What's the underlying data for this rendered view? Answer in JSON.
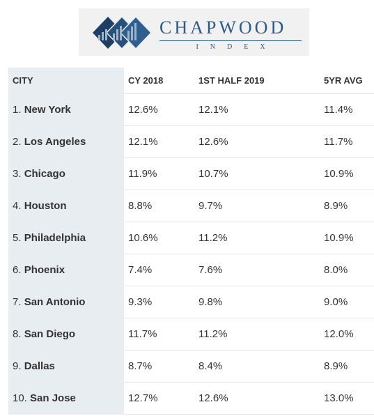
{
  "logo": {
    "wordmark": "CHAPWOOD",
    "subtitle": "INDEX",
    "colors": {
      "mark_dark": "#1f3f62",
      "mark_mid": "#2f5f8f",
      "text": "#2b5a86",
      "background": "#f1f1f1"
    }
  },
  "table": {
    "headers": {
      "city": "CITY",
      "cy2018": "CY 2018",
      "half2019": "1ST HALF 2019",
      "avg5yr": "5YR AVG"
    },
    "rows": [
      {
        "rank": "1.",
        "city": "New York",
        "cy2018": "12.6%",
        "half2019": "12.1%",
        "avg5yr": "11.4%"
      },
      {
        "rank": "2.",
        "city": "Los Angeles",
        "cy2018": "12.1%",
        "half2019": "12.6%",
        "avg5yr": "11.7%"
      },
      {
        "rank": "3.",
        "city": "Chicago",
        "cy2018": "11.9%",
        "half2019": "10.7%",
        "avg5yr": "10.9%"
      },
      {
        "rank": "4.",
        "city": "Houston",
        "cy2018": "8.8%",
        "half2019": "9.7%",
        "avg5yr": "8.9%"
      },
      {
        "rank": "5.",
        "city": "Philadelphia",
        "cy2018": "10.6%",
        "half2019": "11.2%",
        "avg5yr": "10.9%"
      },
      {
        "rank": "6.",
        "city": "Phoenix",
        "cy2018": "7.4%",
        "half2019": "7.6%",
        "avg5yr": "8.0%"
      },
      {
        "rank": "7.",
        "city": "San Antonio",
        "cy2018": "9.3%",
        "half2019": "9.8%",
        "avg5yr": "9.0%"
      },
      {
        "rank": "8.",
        "city": "San Diego",
        "cy2018": "11.7%",
        "half2019": "11.2%",
        "avg5yr": "12.0%"
      },
      {
        "rank": "9.",
        "city": "Dallas",
        "cy2018": "8.7%",
        "half2019": "8.4%",
        "avg5yr": "8.9%"
      },
      {
        "rank": "10.",
        "city": "San Jose",
        "cy2018": "12.7%",
        "half2019": "12.6%",
        "avg5yr": "13.0%"
      }
    ]
  }
}
